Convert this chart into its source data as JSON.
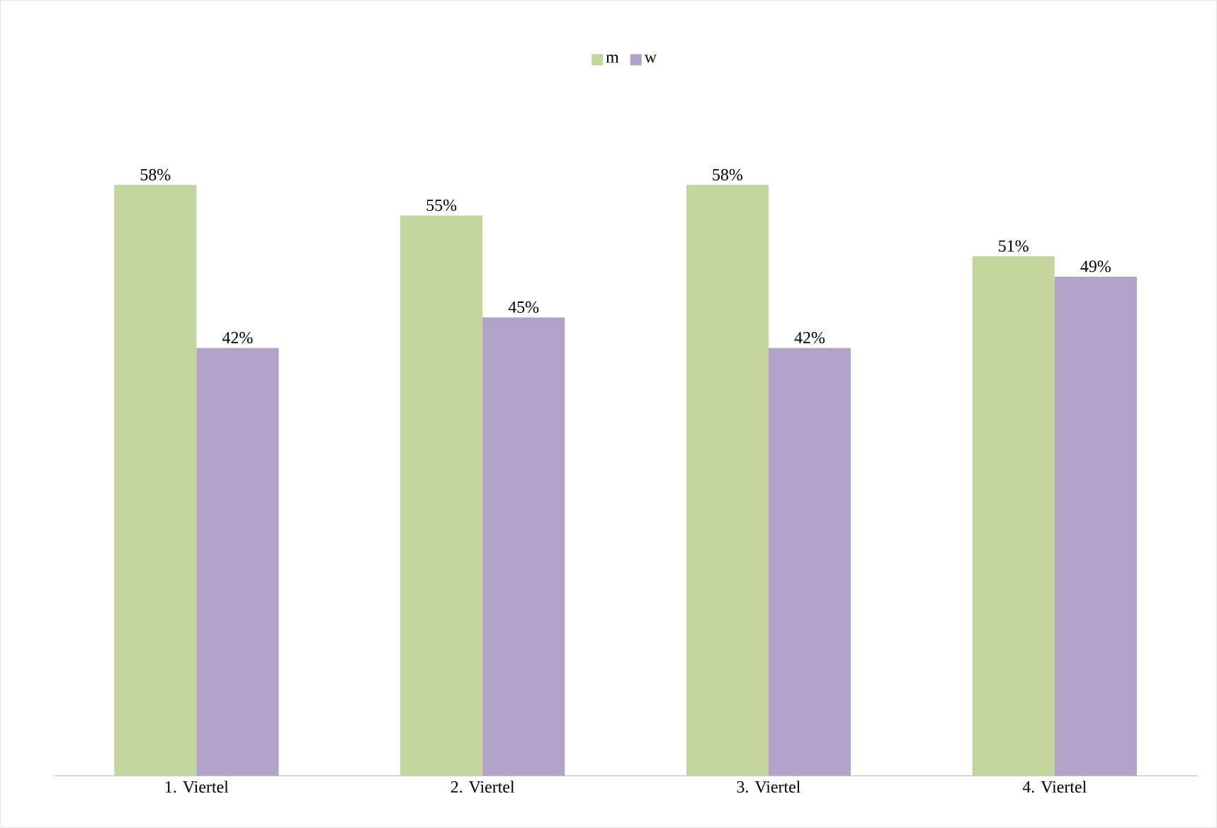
{
  "chart_data": {
    "type": "bar",
    "categories": [
      "1. Viertel",
      "2. Viertel",
      "3. Viertel",
      "4. Viertel"
    ],
    "series": [
      {
        "name": "m",
        "color": "#c3d69b",
        "values": [
          58,
          55,
          58,
          51
        ],
        "value_labels": [
          "58%",
          "55%",
          "58%",
          "51%"
        ]
      },
      {
        "name": "w",
        "color": "#b3a2c7",
        "values": [
          42,
          45,
          42,
          49
        ],
        "value_labels": [
          "42%",
          "45%",
          "42%",
          "49%"
        ]
      }
    ],
    "tick_labels": "x",
    "legend": "top"
  }
}
